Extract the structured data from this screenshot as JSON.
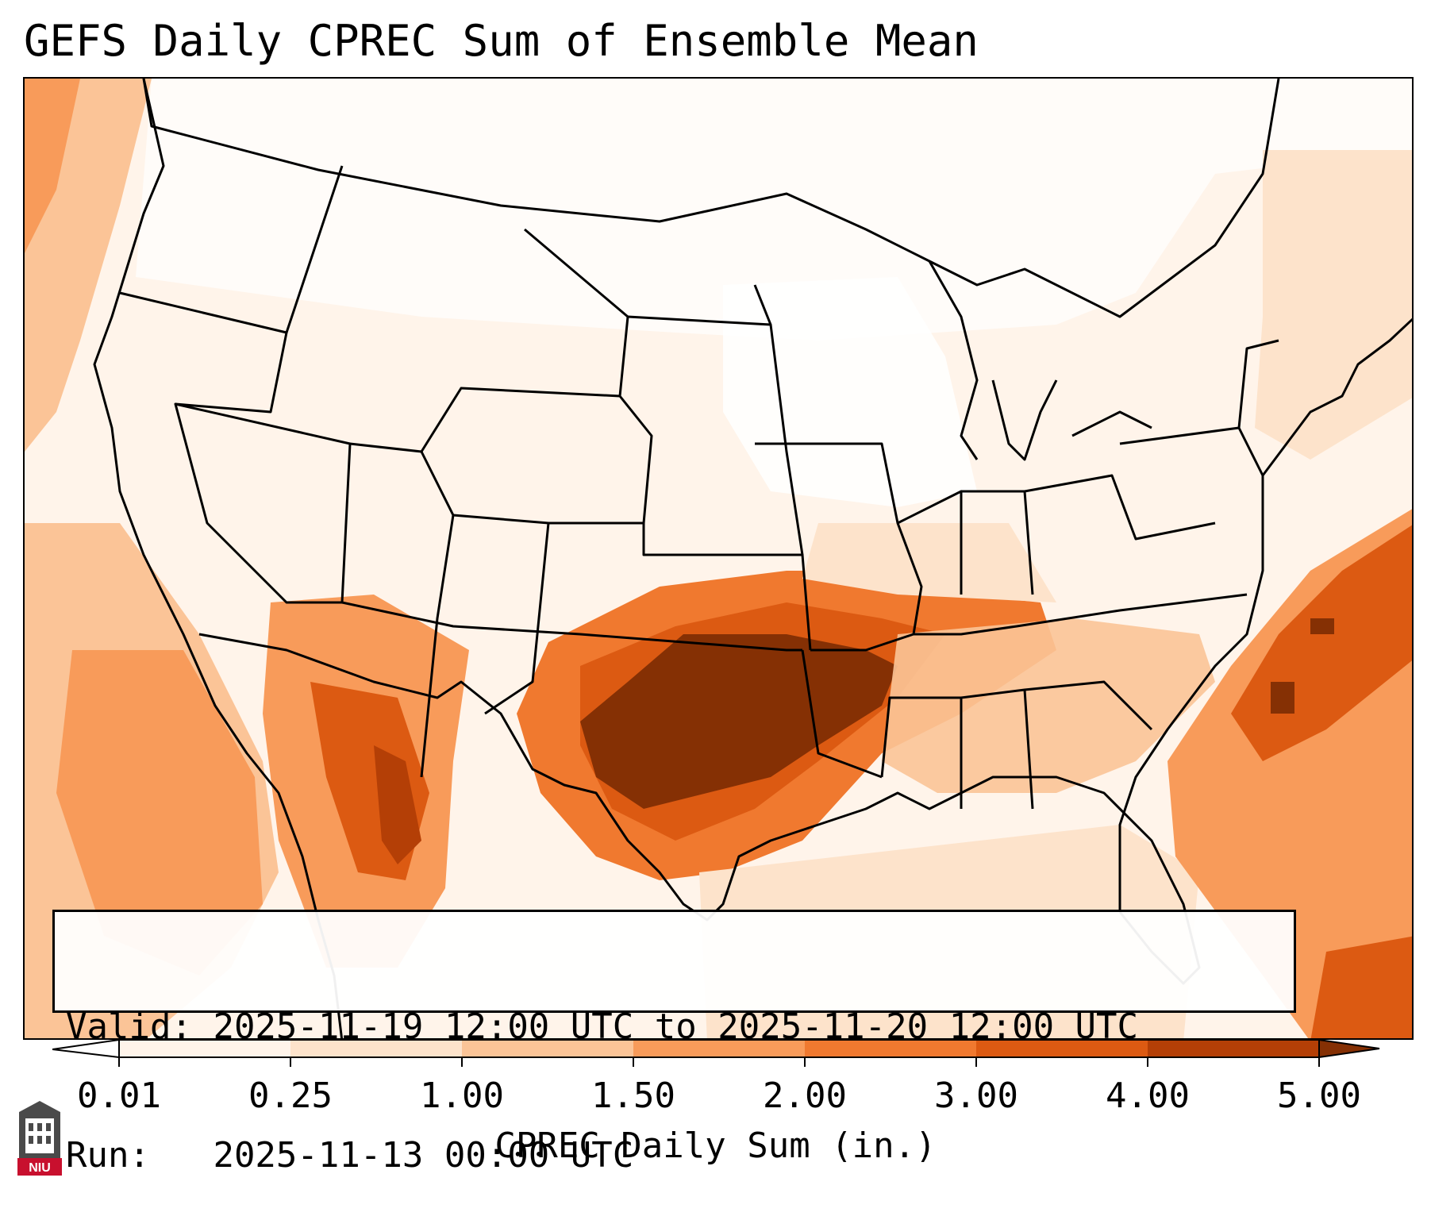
{
  "title": "GEFS Daily CPREC Sum of Ensemble Mean",
  "info": {
    "valid_label": "Valid:",
    "valid_value": "2025-11-19 12:00 UTC to 2025-11-20 12:00 UTC",
    "run_label": "Run:",
    "run_value": "2025-11-13 00:00 UTC"
  },
  "colorbar": {
    "label": "CPREC Daily Sum (in.)",
    "ticks": [
      "0.01",
      "0.25",
      "1.00",
      "1.50",
      "2.00",
      "3.00",
      "4.00",
      "5.00"
    ],
    "colors": [
      "#fff4ea",
      "#fde3cb",
      "#fbc497",
      "#f89b5a",
      "#f0792f",
      "#dc5a12",
      "#b43f06",
      "#853004"
    ],
    "extend": "both"
  },
  "logo": {
    "text": "NIU",
    "icon": "university-tower-icon",
    "color": "#c8102e"
  },
  "precip_colors": {
    "none": "#ffffff",
    "trace": "#fff4ea",
    "light": "#fde3cb",
    "moderate": "#fbc497",
    "heavy": "#f0792f",
    "very_heavy": "#dc5a12",
    "extreme": "#853004"
  }
}
